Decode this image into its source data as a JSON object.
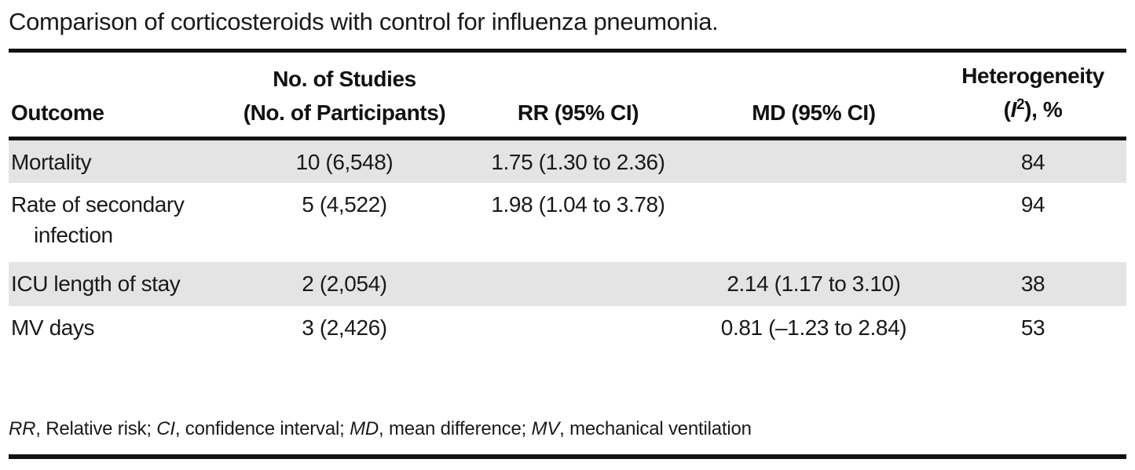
{
  "title": "Comparison of corticosteroids with control for influenza pneumonia.",
  "table": {
    "headers": {
      "outcome": "Outcome",
      "studies_line1": "No. of Studies",
      "studies_line2": "(No. of Participants)",
      "rr": "RR (95% CI)",
      "md": "MD (95% CI)",
      "het_line1": "Heterogeneity",
      "het_line2": {
        "open": "(",
        "symbol": "I",
        "sup": "2",
        "close": "), %"
      }
    },
    "rows": [
      {
        "outcome_lines": [
          "Mortality"
        ],
        "studies": "10 (6,548)",
        "rr": "1.75 (1.30 to 2.36)",
        "md": "",
        "heterogeneity": "84"
      },
      {
        "outcome_lines": [
          "Rate of secondary",
          "infection"
        ],
        "studies": "5 (4,522)",
        "rr": "1.98 (1.04 to 3.78)",
        "md": "",
        "heterogeneity": "94"
      },
      {
        "outcome_lines": [
          "ICU length of stay"
        ],
        "studies": "2 (2,054)",
        "rr": "",
        "md": "2.14 (1.17 to 3.10)",
        "heterogeneity": "38"
      },
      {
        "outcome_lines": [
          "MV days"
        ],
        "studies": "3 (2,426)",
        "rr": "",
        "md": "0.81 (–1.23 to 2.84)",
        "heterogeneity": "53"
      }
    ]
  },
  "footnote": {
    "items": [
      {
        "abbr": "RR",
        "definition": "Relative risk"
      },
      {
        "abbr": "CI",
        "definition": "confidence interval"
      },
      {
        "abbr": "MD",
        "definition": "mean difference"
      },
      {
        "abbr": "MV",
        "definition": "mechanical ventilation"
      }
    ],
    "abbr_def_separator": ", ",
    "separator": "; "
  },
  "colors": {
    "row_shade": "#e4e4e4",
    "rule": "#121212",
    "text": "#1a1a1a"
  }
}
